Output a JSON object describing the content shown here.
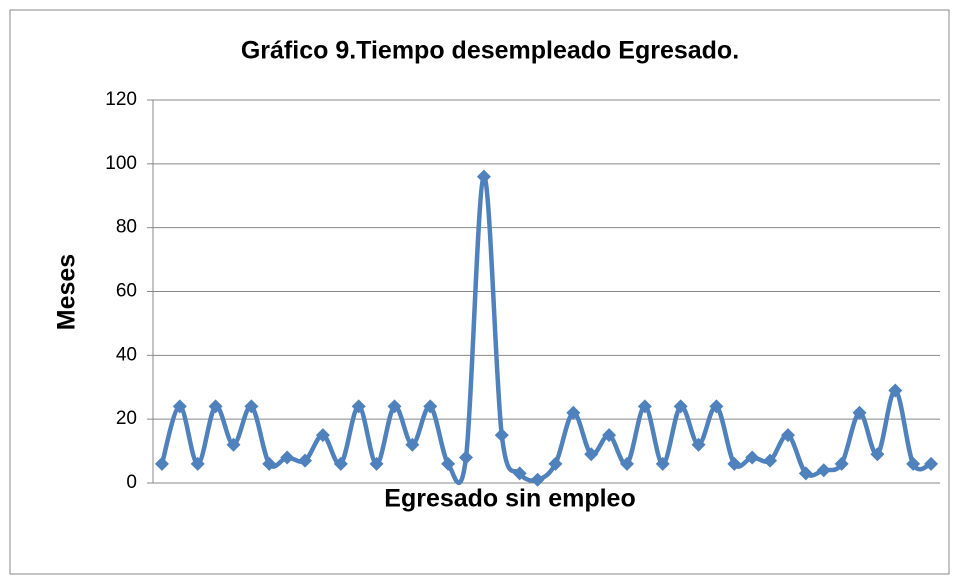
{
  "chart_data": {
    "type": "line",
    "title": "Gráfico 9.Tiempo desempleado Egresado.",
    "x_label": "Egresado sin empleo",
    "y_label": "Meses",
    "categories": [
      null,
      null,
      null,
      null,
      null,
      null,
      null,
      null,
      null,
      null,
      null,
      null,
      null,
      null,
      null,
      null,
      null,
      null,
      null,
      null,
      null,
      null,
      null,
      null,
      null,
      null,
      null,
      null,
      null,
      null,
      null,
      null,
      null,
      null,
      null,
      null,
      null,
      null,
      null,
      null,
      null,
      null,
      null,
      null
    ],
    "series": [
      {
        "name": "Meses",
        "color": "#4f81bd",
        "values": [
          6,
          24,
          6,
          24,
          12,
          24,
          6,
          8,
          7,
          15,
          6,
          24,
          6,
          24,
          12,
          24,
          6,
          8,
          96,
          15,
          3,
          1,
          6,
          22,
          9,
          15,
          6,
          24,
          6,
          24,
          12,
          24,
          6,
          8,
          7,
          15,
          3,
          4,
          6,
          22,
          9,
          29,
          6,
          6
        ]
      }
    ],
    "ylim": [
      0,
      120
    ],
    "yticks": [
      0,
      20,
      40,
      60,
      80,
      100,
      120
    ],
    "grid": true,
    "smooth": true,
    "marker": "diamond"
  }
}
